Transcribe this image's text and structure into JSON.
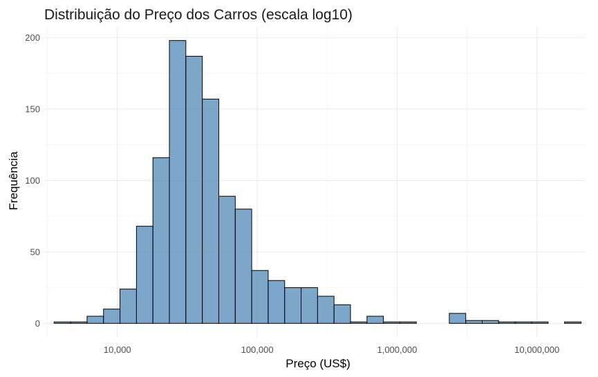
{
  "chart_data": {
    "type": "bar",
    "title": "Distribuição do Preço dos Carros (escala log10)",
    "xlabel": "Preço (US$)",
    "ylabel": "Frequência",
    "x_scale": "log10",
    "xlim": [
      3000,
      22000000
    ],
    "ylim": [
      -10,
      208
    ],
    "grid": true,
    "x_ticks": [
      {
        "value": 10000,
        "label": "10,000"
      },
      {
        "value": 100000,
        "label": "100,000"
      },
      {
        "value": 1000000,
        "label": "1,000,000"
      },
      {
        "value": 10000000,
        "label": "10,000,000"
      }
    ],
    "y_ticks": [
      {
        "value": 0,
        "label": "0"
      },
      {
        "value": 50,
        "label": "50"
      },
      {
        "value": 100,
        "label": "100"
      },
      {
        "value": 150,
        "label": "150"
      },
      {
        "value": 200,
        "label": "200"
      }
    ],
    "bins": [
      {
        "x0": 3530,
        "x1": 4630,
        "count": 1
      },
      {
        "x0": 4630,
        "x1": 6070,
        "count": 1
      },
      {
        "x0": 6070,
        "x1": 7960,
        "count": 5
      },
      {
        "x0": 7960,
        "x1": 10440,
        "count": 10
      },
      {
        "x0": 10440,
        "x1": 13690,
        "count": 24
      },
      {
        "x0": 13690,
        "x1": 17950,
        "count": 68
      },
      {
        "x0": 17950,
        "x1": 23540,
        "count": 116
      },
      {
        "x0": 23540,
        "x1": 30870,
        "count": 198
      },
      {
        "x0": 30870,
        "x1": 40480,
        "count": 187
      },
      {
        "x0": 40480,
        "x1": 53090,
        "count": 157
      },
      {
        "x0": 53090,
        "x1": 69620,
        "count": 89
      },
      {
        "x0": 69620,
        "x1": 91300,
        "count": 80
      },
      {
        "x0": 91300,
        "x1": 119700,
        "count": 37
      },
      {
        "x0": 119700,
        "x1": 157000,
        "count": 30
      },
      {
        "x0": 157000,
        "x1": 205900,
        "count": 25
      },
      {
        "x0": 205900,
        "x1": 270000,
        "count": 25
      },
      {
        "x0": 270000,
        "x1": 354000,
        "count": 19
      },
      {
        "x0": 354000,
        "x1": 464200,
        "count": 13
      },
      {
        "x0": 464200,
        "x1": 608800,
        "count": 1
      },
      {
        "x0": 608800,
        "x1": 798300,
        "count": 5
      },
      {
        "x0": 798300,
        "x1": 1047000,
        "count": 1
      },
      {
        "x0": 1047000,
        "x1": 1373000,
        "count": 1
      },
      {
        "x0": 1373000,
        "x1": 1800000,
        "count": 0
      },
      {
        "x0": 1800000,
        "x1": 2361000,
        "count": 0
      },
      {
        "x0": 2361000,
        "x1": 3096000,
        "count": 7
      },
      {
        "x0": 3096000,
        "x1": 4060000,
        "count": 2
      },
      {
        "x0": 4060000,
        "x1": 5324000,
        "count": 2
      },
      {
        "x0": 5324000,
        "x1": 6982000,
        "count": 1
      },
      {
        "x0": 6982000,
        "x1": 9156000,
        "count": 1
      },
      {
        "x0": 9156000,
        "x1": 12010000,
        "count": 1
      },
      {
        "x0": 12010000,
        "x1": 15750000,
        "count": 0
      },
      {
        "x0": 15750000,
        "x1": 20650000,
        "count": 1
      }
    ],
    "bar_color": "#4682b4"
  }
}
